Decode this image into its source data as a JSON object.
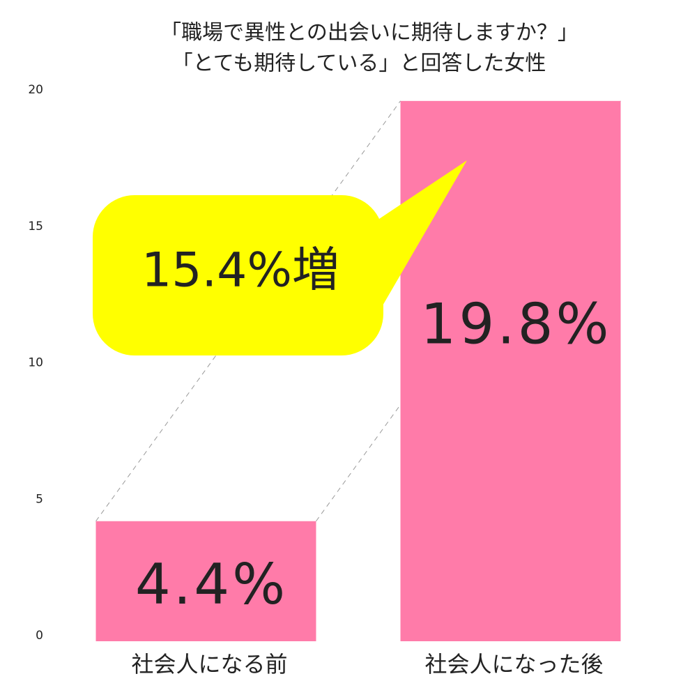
{
  "chart_data": {
    "type": "bar",
    "title": "「職場で異性との出会いに期待しますか？」",
    "subtitle": "「とても期待している」と回答した女性",
    "categories": [
      "社会人になる前",
      "社会人になった後"
    ],
    "values": [
      4.4,
      19.8
    ],
    "value_labels": [
      "4.4%",
      "19.8%"
    ],
    "color": "#ff7ba9",
    "annotation": "15.4%増",
    "ylim": [
      0,
      20
    ],
    "yticks": [
      0,
      5,
      10,
      15,
      20
    ],
    "grid": false
  }
}
